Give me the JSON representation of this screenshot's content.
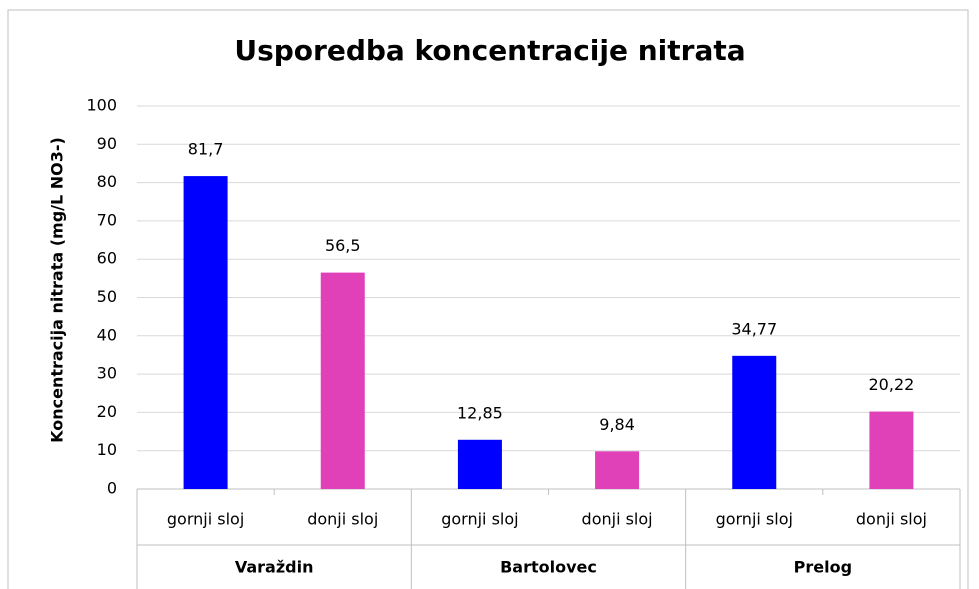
{
  "chart_data": {
    "type": "bar",
    "title": "Usporedba koncentracije nitrata",
    "y_label": "Koncentracija  nitrata (mg/L NO3-)",
    "categories": [
      "gornji sloj",
      "donji sloj",
      "gornji sloj",
      "donji sloj",
      "gornji sloj",
      "donji sloj"
    ],
    "groups": [
      "Varaždin",
      "Bartolovec",
      "Prelog"
    ],
    "values": [
      81.7,
      56.5,
      12.85,
      9.84,
      34.77,
      20.22
    ],
    "value_labels": [
      "81,7",
      "56,5",
      "12,85",
      "9,84",
      "34,77",
      "20,22"
    ],
    "colors": [
      "#0000ff",
      "#e040b8",
      "#0000ff",
      "#e040b8",
      "#0000ff",
      "#e040b8"
    ],
    "ylim": [
      0,
      100
    ],
    "yticks": [
      0,
      10,
      20,
      30,
      40,
      50,
      60,
      70,
      80,
      90,
      100
    ],
    "grid": true
  }
}
